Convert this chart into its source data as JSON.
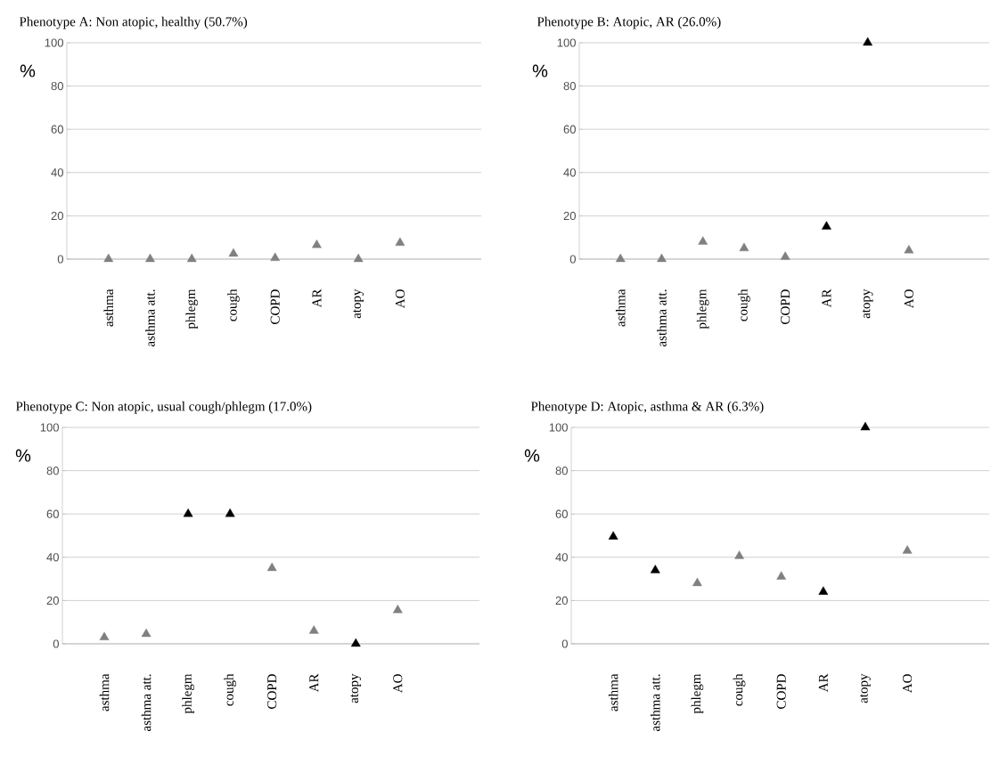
{
  "chart_data": [
    {
      "type": "scatter",
      "title": "Phenotype A: Non atopic, healthy (50.7%)",
      "ylabel": "%",
      "categories": [
        "asthma",
        "asthma att.",
        "phlegm",
        "cough",
        "COPD",
        "AR",
        "atopy",
        "AO"
      ],
      "values": [
        0,
        0,
        0,
        2.5,
        0.5,
        6.5,
        0,
        7.5
      ],
      "colors": [
        "#808080",
        "#808080",
        "#808080",
        "#808080",
        "#808080",
        "#808080",
        "#808080",
        "#808080"
      ],
      "ylim": [
        0,
        100
      ],
      "yticks": [
        0,
        20,
        40,
        60,
        80,
        100
      ],
      "grid": "y",
      "marker": "triangle"
    },
    {
      "type": "scatter",
      "title": "Phenotype B: Atopic, AR (26.0%)",
      "ylabel": "%",
      "categories": [
        "asthma",
        "asthma att.",
        "phlegm",
        "cough",
        "COPD",
        "AR",
        "atopy",
        "AO"
      ],
      "values": [
        0,
        0,
        8,
        5,
        1,
        15,
        100,
        4
      ],
      "colors": [
        "#808080",
        "#808080",
        "#808080",
        "#808080",
        "#808080",
        "#000000",
        "#000000",
        "#808080"
      ],
      "ylim": [
        0,
        100
      ],
      "yticks": [
        0,
        20,
        40,
        60,
        80,
        100
      ],
      "grid": "y",
      "marker": "triangle"
    },
    {
      "type": "scatter",
      "title": "Phenotype C: Non atopic, usual cough/phlegm (17.0%)",
      "ylabel": "%",
      "categories": [
        "asthma",
        "asthma att.",
        "phlegm",
        "cough",
        "COPD",
        "AR",
        "atopy",
        "AO"
      ],
      "values": [
        3,
        4.5,
        60,
        60,
        35,
        6,
        0,
        15.5
      ],
      "colors": [
        "#808080",
        "#808080",
        "#000000",
        "#000000",
        "#808080",
        "#808080",
        "#000000",
        "#808080"
      ],
      "ylim": [
        0,
        100
      ],
      "yticks": [
        0,
        20,
        40,
        60,
        80,
        100
      ],
      "grid": "y",
      "marker": "triangle"
    },
    {
      "type": "scatter",
      "title": "Phenotype D: Atopic, asthma & AR (6.3%)",
      "ylabel": "%",
      "categories": [
        "asthma",
        "asthma att.",
        "phlegm",
        "cough",
        "COPD",
        "AR",
        "atopy",
        "AO"
      ],
      "values": [
        49.5,
        34,
        28,
        40.5,
        31,
        24,
        100,
        43
      ],
      "colors": [
        "#000000",
        "#000000",
        "#808080",
        "#808080",
        "#808080",
        "#000000",
        "#000000",
        "#808080"
      ],
      "ylim": [
        0,
        100
      ],
      "yticks": [
        0,
        20,
        40,
        60,
        80,
        100
      ],
      "grid": "y",
      "marker": "triangle"
    }
  ]
}
